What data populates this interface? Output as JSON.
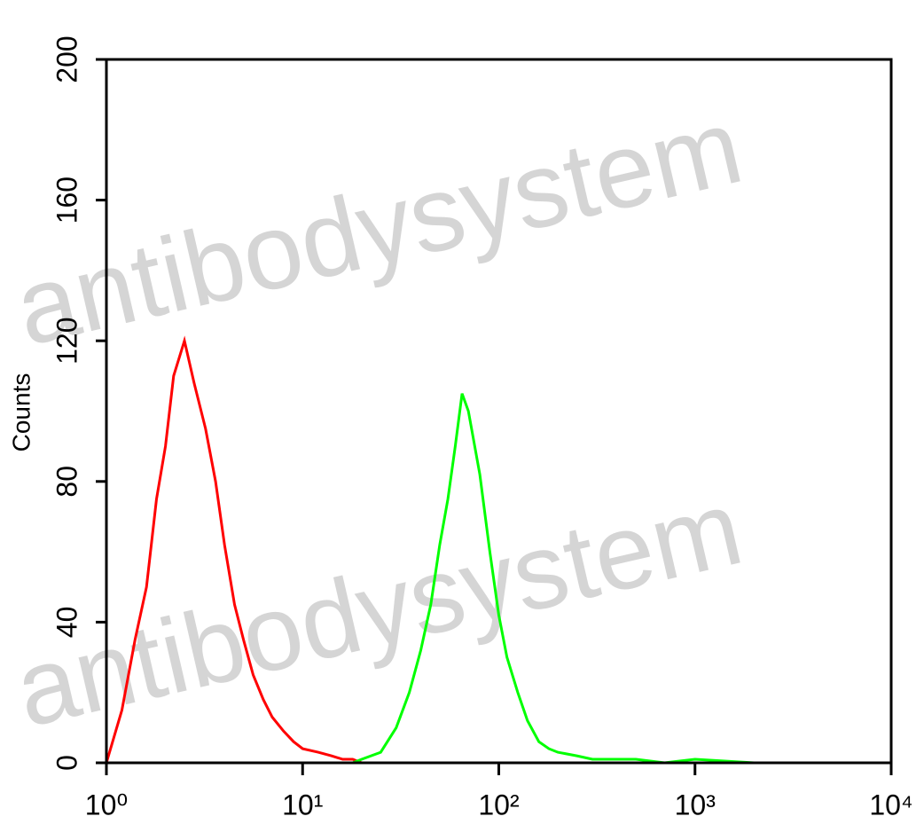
{
  "chart_data": {
    "type": "line",
    "ylabel": "Counts",
    "watermark": "antibodysystem",
    "xscale": "log",
    "xlim": [
      1,
      10000
    ],
    "xticks": [
      {
        "value": 1,
        "label": "10⁰"
      },
      {
        "value": 10,
        "label": "10¹"
      },
      {
        "value": 100,
        "label": "10²"
      },
      {
        "value": 1000,
        "label": "10³"
      },
      {
        "value": 10000,
        "label": "10⁴"
      }
    ],
    "ylim": [
      0,
      200
    ],
    "yticks": [
      0,
      40,
      80,
      120,
      160,
      200
    ],
    "x": [
      1,
      1.2,
      1.4,
      1.6,
      1.8,
      2,
      2.2,
      2.5,
      2.8,
      3.2,
      3.6,
      4,
      4.5,
      5,
      5.6,
      6.3,
      7,
      8,
      9,
      10,
      12,
      14,
      16,
      18,
      20,
      25,
      30,
      35,
      40,
      45,
      50,
      55,
      60,
      65,
      70,
      80,
      90,
      100,
      110,
      125,
      140,
      160,
      180,
      200,
      250,
      300,
      400,
      500,
      700,
      1000,
      2000
    ],
    "series": [
      {
        "color": "#ff0000",
        "values": [
          0,
          15,
          35,
          50,
          75,
          90,
          110,
          120,
          108,
          95,
          80,
          62,
          45,
          35,
          25,
          18,
          13,
          9,
          6,
          4,
          3,
          2,
          1,
          1,
          0,
          0,
          0,
          0,
          0,
          0,
          0,
          0,
          0,
          0,
          0,
          0,
          0,
          0,
          0,
          0,
          0,
          0,
          0,
          0,
          0,
          0,
          0,
          0,
          0,
          0,
          0
        ]
      },
      {
        "color": "#00ff00",
        "values": [
          0,
          0,
          0,
          0,
          0,
          0,
          0,
          0,
          0,
          0,
          0,
          0,
          0,
          0,
          0,
          0,
          0,
          0,
          0,
          0,
          0,
          0,
          0,
          0,
          1,
          3,
          10,
          20,
          32,
          45,
          62,
          75,
          90,
          105,
          100,
          82,
          60,
          42,
          30,
          20,
          12,
          6,
          4,
          3,
          2,
          1,
          1,
          1,
          0,
          1,
          0
        ]
      }
    ]
  }
}
